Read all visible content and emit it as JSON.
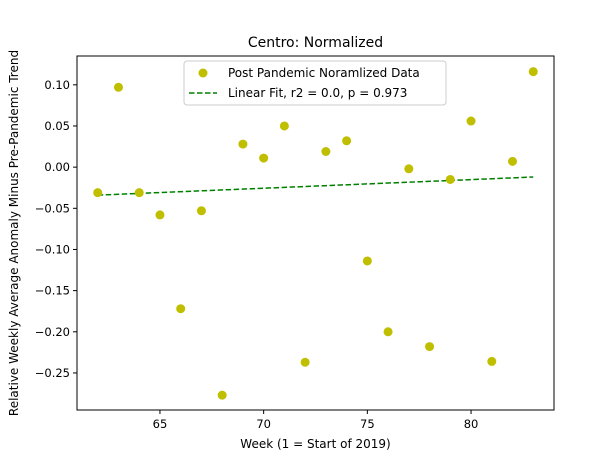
{
  "chart_data": {
    "type": "scatter",
    "title": "Centro: Normalized",
    "xlabel": "Week (1 = Start of 2019)",
    "ylabel": "Relative Weekly Average Anomaly Minus Pre-Pandemic Trend",
    "xlim": [
      61,
      84
    ],
    "ylim": [
      -0.295,
      0.135
    ],
    "x_ticks": [
      65,
      70,
      75,
      80
    ],
    "x_tick_labels": [
      "65",
      "70",
      "75",
      "80"
    ],
    "y_ticks": [
      0.1,
      0.05,
      0.0,
      -0.05,
      -0.1,
      -0.15,
      -0.2,
      -0.25
    ],
    "y_tick_labels": [
      "0.10",
      "0.05",
      "0.00",
      "−0.05",
      "−0.10",
      "−0.15",
      "−0.20",
      "−0.25"
    ],
    "grid": false,
    "legend_position": "upper-center",
    "series": [
      {
        "name": "Post Pandemic Noramlized Data",
        "kind": "scatter",
        "color": "#bfbf00",
        "x": [
          62,
          63,
          64,
          65,
          66,
          67,
          68,
          69,
          70,
          71,
          72,
          73,
          74,
          75,
          76,
          77,
          78,
          79,
          80,
          81,
          82,
          83
        ],
        "y": [
          -0.031,
          0.097,
          -0.031,
          -0.058,
          -0.172,
          -0.053,
          -0.277,
          0.028,
          0.011,
          0.05,
          -0.237,
          0.019,
          0.032,
          -0.114,
          -0.2,
          -0.002,
          -0.218,
          -0.015,
          0.056,
          -0.236,
          0.007,
          0.116
        ]
      },
      {
        "name": "Linear Fit, r2 = 0.0, p = 0.973",
        "kind": "line",
        "style": "dashed",
        "color": "#008000",
        "x": [
          62,
          83
        ],
        "y": [
          -0.034,
          -0.012
        ]
      }
    ]
  }
}
